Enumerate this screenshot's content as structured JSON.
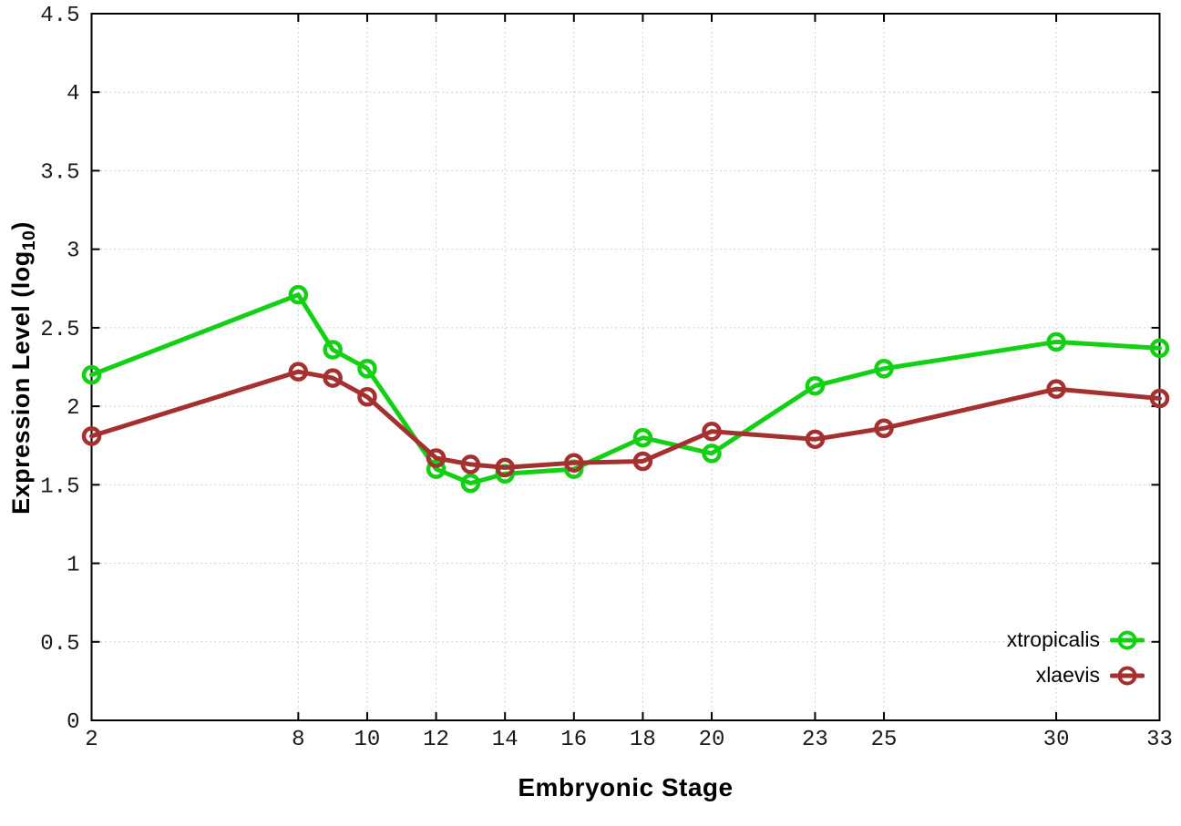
{
  "page": {
    "background": "#ffffff"
  },
  "chart_data": {
    "type": "line",
    "title": "",
    "xlabel": "Embryonic Stage",
    "ylabel": "Expression Level (log10)",
    "ylabel_parts": {
      "pre": "Expression Level (log",
      "sub": "10",
      "post": ")"
    },
    "x": [
      2,
      8,
      9,
      10,
      12,
      13,
      14,
      16,
      18,
      20,
      23,
      25,
      30,
      33
    ],
    "series": [
      {
        "name": "xtropicalis",
        "color": "#14d014",
        "marker": "open-circle",
        "values": [
          2.2,
          2.71,
          2.36,
          2.24,
          1.6,
          1.51,
          1.57,
          1.6,
          1.8,
          1.7,
          2.13,
          2.24,
          2.41,
          2.37
        ]
      },
      {
        "name": "xlaevis",
        "color": "#a53030",
        "marker": "open-circle",
        "values": [
          1.81,
          2.22,
          2.18,
          2.06,
          1.67,
          1.63,
          1.61,
          1.64,
          1.65,
          1.84,
          1.79,
          1.86,
          2.11,
          2.05
        ]
      }
    ],
    "xlim": [
      2,
      33
    ],
    "ylim": [
      0,
      4.5
    ],
    "x_tick_labels": [
      "2",
      "8",
      "10",
      "12",
      "14",
      "16",
      "18",
      "20",
      "23",
      "25",
      "30",
      "33"
    ],
    "y_tick_labels": [
      "0",
      "0.5",
      "1",
      "1.5",
      "2",
      "2.5",
      "3",
      "3.5",
      "4",
      "4.5"
    ],
    "grid": true,
    "grid_color": "#c4c4c4",
    "axis_color": "#000000",
    "tick_label_color": "#1a1a1a",
    "legend_position": "inside-bottom-right"
  }
}
